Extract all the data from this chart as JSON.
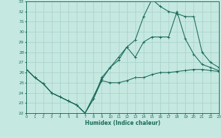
{
  "xlabel": "Humidex (Indice chaleur)",
  "bg_color": "#c5e8e0",
  "line_color": "#1a6b5a",
  "grid_color": "#aad4cc",
  "x_min": 0,
  "x_max": 23,
  "y_min": 22,
  "y_max": 33,
  "line1_x": [
    0,
    1,
    2,
    3,
    4,
    5,
    6,
    7,
    8,
    9,
    10,
    11,
    12,
    13,
    14,
    15,
    16,
    17,
    18,
    19,
    20,
    21,
    22,
    23
  ],
  "line1_y": [
    26.3,
    25.5,
    24.9,
    24.0,
    23.6,
    23.2,
    22.8,
    22.0,
    23.4,
    25.2,
    25.0,
    25.0,
    25.2,
    25.5,
    25.5,
    25.8,
    26.0,
    26.0,
    26.1,
    26.2,
    26.3,
    26.3,
    26.2,
    26.1
  ],
  "line2_x": [
    0,
    1,
    2,
    3,
    4,
    5,
    6,
    7,
    8,
    9,
    10,
    11,
    12,
    13,
    14,
    15,
    16,
    17,
    18,
    19,
    20,
    21,
    22,
    23
  ],
  "line2_y": [
    26.3,
    25.5,
    24.9,
    24.0,
    23.6,
    23.2,
    22.8,
    22.0,
    23.4,
    25.5,
    26.5,
    27.5,
    28.5,
    27.5,
    29.0,
    29.5,
    29.5,
    29.5,
    32.0,
    29.3,
    27.8,
    26.8,
    26.5,
    26.2
  ],
  "line3_x": [
    0,
    1,
    2,
    3,
    4,
    5,
    6,
    7,
    9,
    10,
    11,
    12,
    13,
    14,
    15,
    16,
    17,
    18,
    19,
    20,
    21,
    22,
    23
  ],
  "line3_y": [
    26.3,
    25.5,
    24.9,
    24.0,
    23.6,
    23.2,
    22.8,
    22.0,
    25.3,
    26.5,
    27.2,
    28.5,
    29.2,
    31.5,
    33.2,
    32.5,
    32.0,
    31.8,
    31.5,
    31.5,
    28.0,
    27.0,
    26.5
  ]
}
